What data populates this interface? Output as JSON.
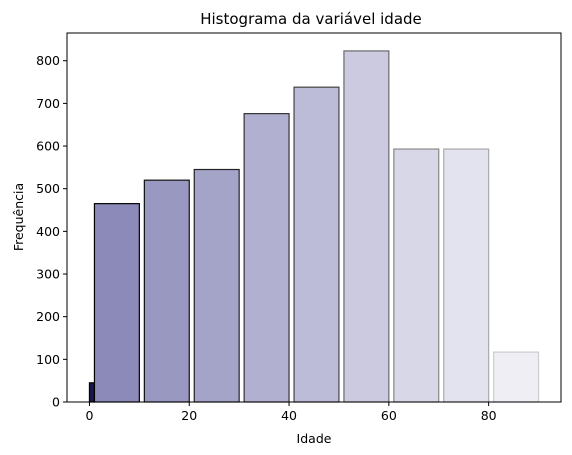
{
  "chart_data": {
    "type": "bar",
    "title": "Histograma da variável idade",
    "xlabel": "Idade",
    "ylabel": "Frequência",
    "xlim": [
      -4.5,
      94.5
    ],
    "ylim": [
      0,
      865
    ],
    "xticks": [
      0,
      20,
      40,
      60,
      80
    ],
    "yticks": [
      0,
      100,
      200,
      300,
      400,
      500,
      600,
      700,
      800
    ],
    "grid": false,
    "bins": [
      {
        "start": 0,
        "end": 1,
        "value": 45,
        "fill": "#1a1a4a",
        "edge": "#000000"
      },
      {
        "start": 1,
        "end": 10,
        "value": 465,
        "fill": "#8b8ab8",
        "edge": "#000000"
      },
      {
        "start": 11,
        "end": 20,
        "value": 520,
        "fill": "#9998c0",
        "edge": "#111111"
      },
      {
        "start": 21,
        "end": 30,
        "value": 545,
        "fill": "#a4a4c8",
        "edge": "#222222"
      },
      {
        "start": 31,
        "end": 40,
        "value": 676,
        "fill": "#b1b0d1",
        "edge": "#333333"
      },
      {
        "start": 41,
        "end": 50,
        "value": 738,
        "fill": "#bdbcd8",
        "edge": "#444444"
      },
      {
        "start": 51,
        "end": 60,
        "value": 823,
        "fill": "#cbcae1",
        "edge": "#6a6a6a"
      },
      {
        "start": 61,
        "end": 70,
        "value": 593,
        "fill": "#d8d7e7",
        "edge": "#888888"
      },
      {
        "start": 71,
        "end": 80,
        "value": 593,
        "fill": "#e3e2ef",
        "edge": "#aaaaaa"
      },
      {
        "start": 81,
        "end": 90,
        "value": 117,
        "fill": "#efeef5",
        "edge": "#cccccc"
      }
    ]
  }
}
